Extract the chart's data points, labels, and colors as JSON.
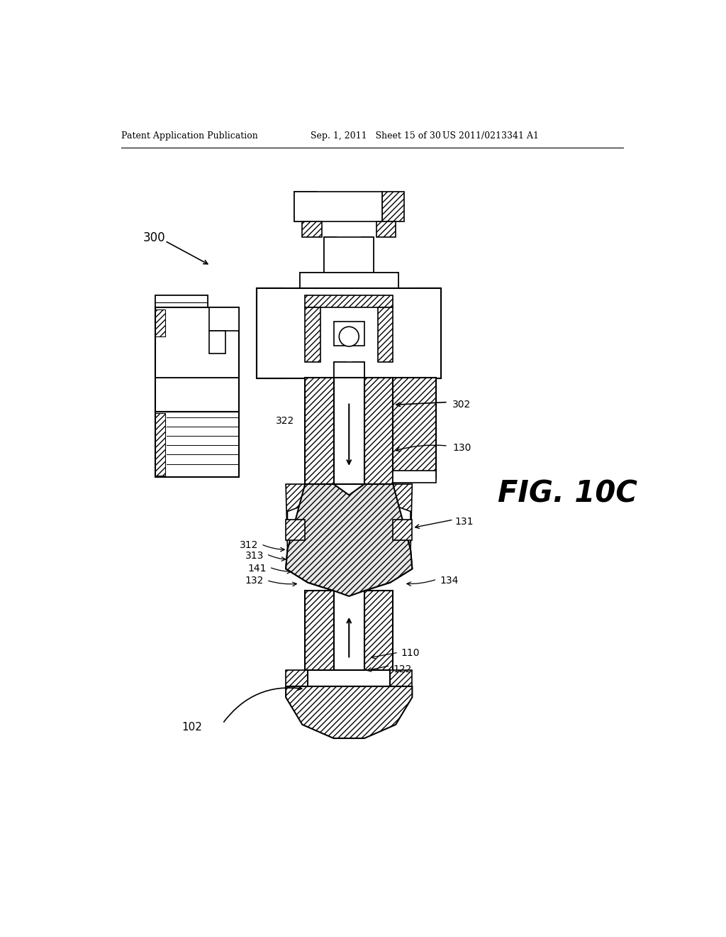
{
  "header_left": "Patent Application Publication",
  "header_mid": "Sep. 1, 2011   Sheet 15 of 30",
  "header_right": "US 2011/0213341 A1",
  "fig_label": "FIG. 10C",
  "bg_color": "#ffffff"
}
